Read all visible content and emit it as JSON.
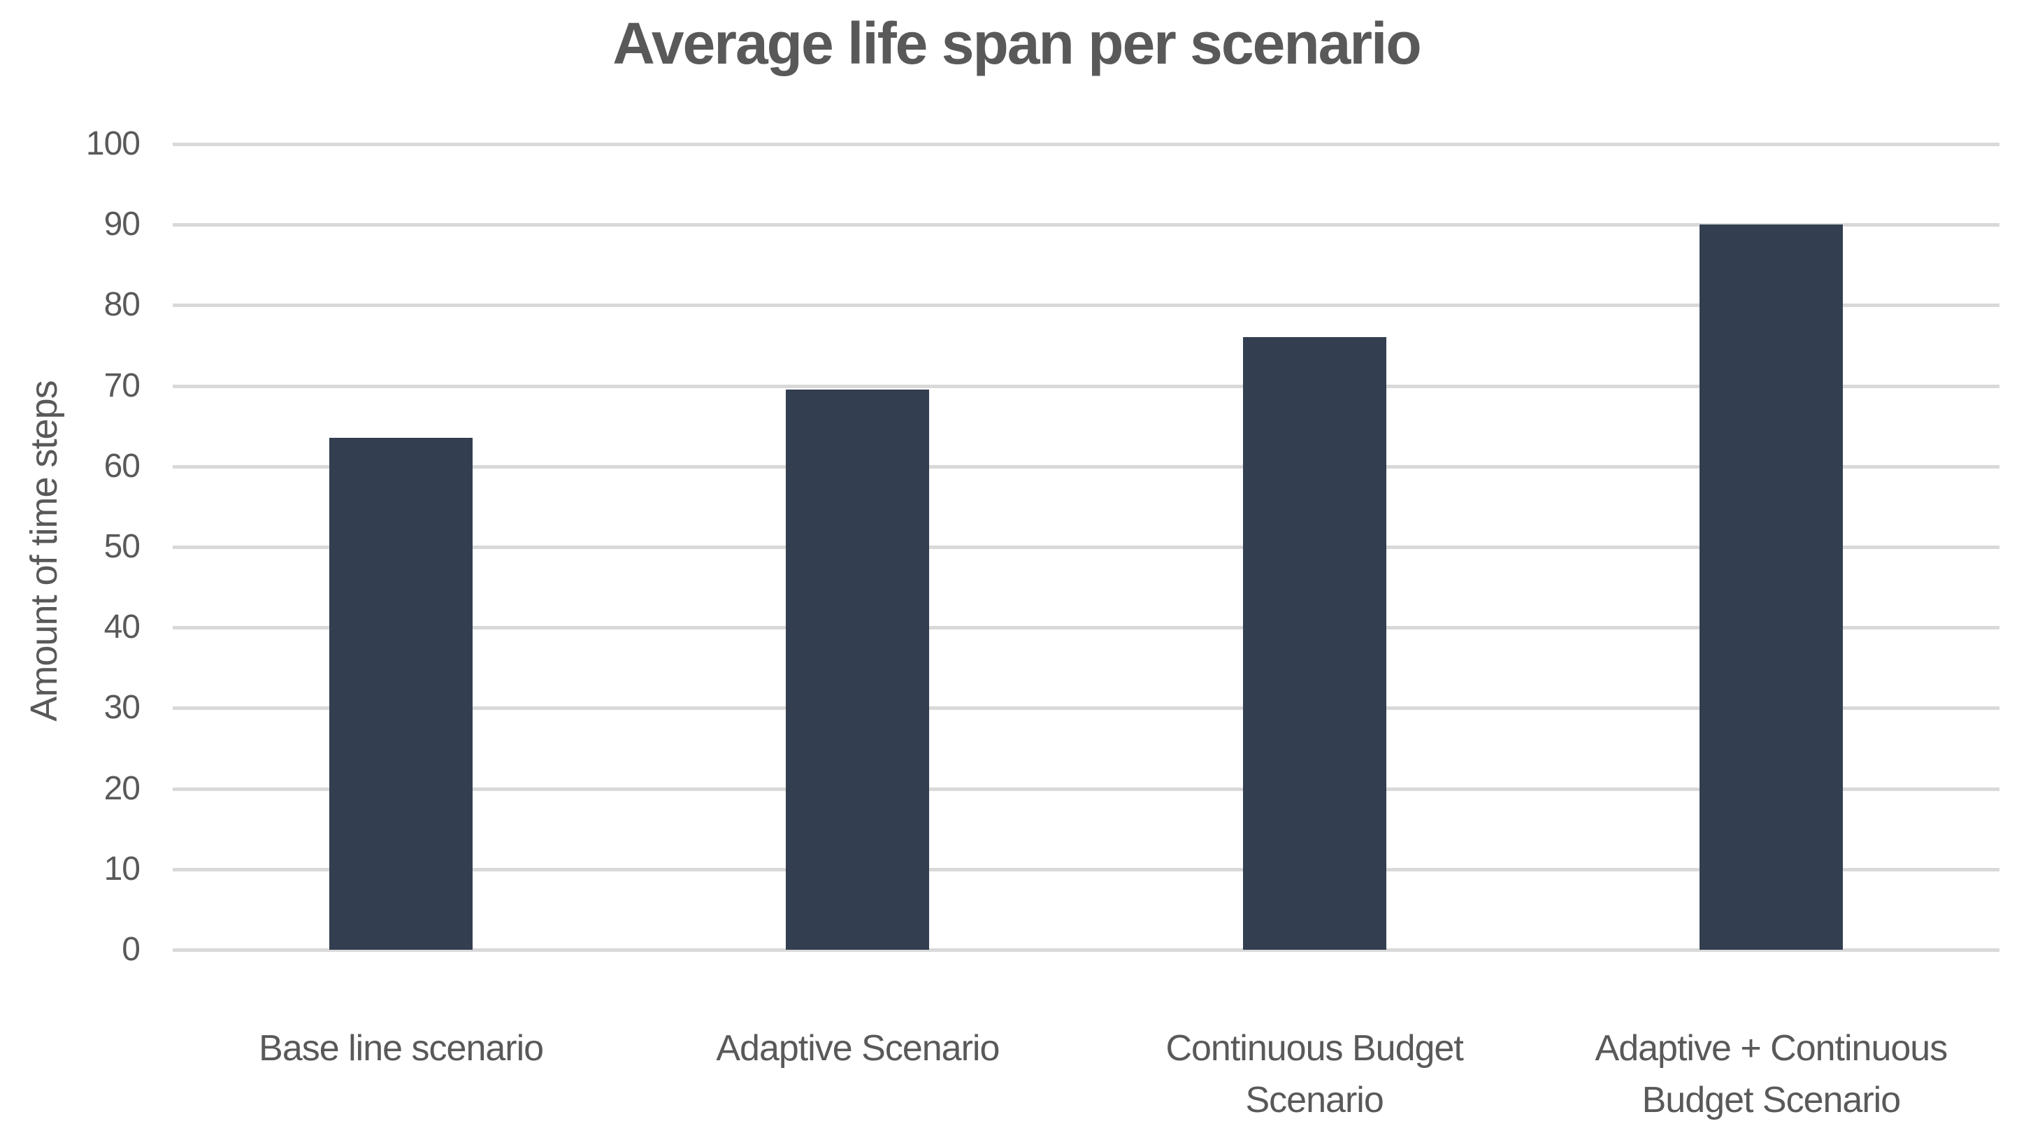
{
  "chart_data": {
    "type": "bar",
    "title": "Average life span per scenario",
    "categories": [
      "Base line scenario",
      "Adaptive Scenario",
      "Continuous Budget Scenario",
      "Adaptive + Continuous Budget Scenario"
    ],
    "values": [
      63.5,
      69.5,
      76,
      90
    ],
    "xlabel": "",
    "ylabel": "Amount of time steps",
    "ylim": [
      0,
      100
    ],
    "yticks": [
      0,
      10,
      20,
      30,
      40,
      50,
      60,
      70,
      80,
      90,
      100
    ],
    "grid": "horizontal",
    "legend": "none",
    "bar_color": "#333F50",
    "gridline_color": "#D9D9D9",
    "text_color": "#595959"
  }
}
